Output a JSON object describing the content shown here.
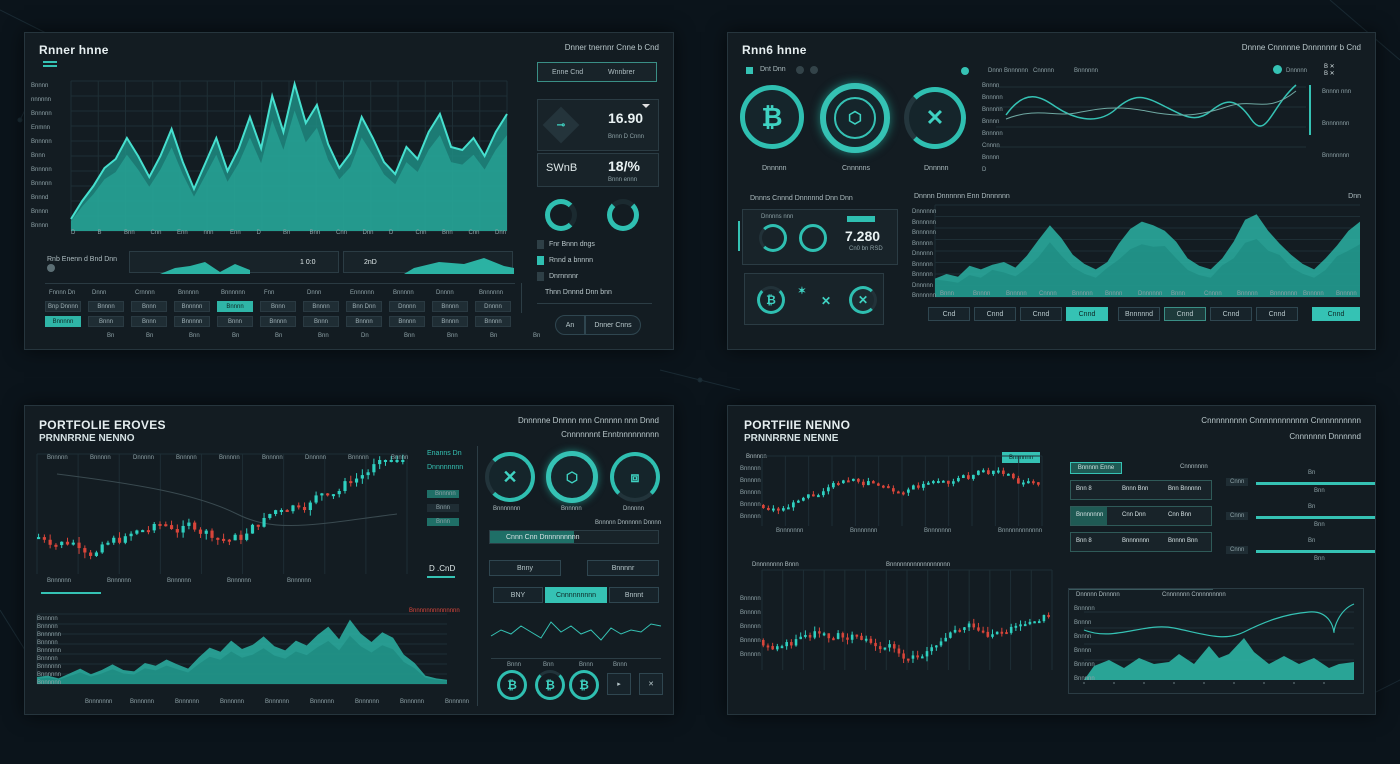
{
  "colors": {
    "accent": "#35c2b4",
    "bg": "#0b141b",
    "panel": "#131c22",
    "bull": "#2fd0c0",
    "bear": "#d8453a"
  },
  "p1": {
    "title": "Rnner hnne",
    "meta": "Dnner tnernnr Cnne b Cnd",
    "tabs": [
      "Enne Cnd",
      "Wnnbrer"
    ],
    "y_ticks": [
      "Bnnnn",
      "nnnnnn",
      "Bnnnnn",
      "Enmnn",
      "Bnnnnn",
      "Bnnn",
      "Bnnnnn",
      "Bnnnnn",
      "Bnnnd",
      "Bnnnn",
      "Bnnnn"
    ],
    "x_ticks": [
      "D",
      "B",
      "Bnn",
      "Cnn",
      "Enn",
      "nnn",
      "Enn",
      "D",
      "Bn",
      "Bnn",
      "Cnn",
      "Dnn",
      "D",
      "Cnn",
      "Bnn",
      "Cnn",
      "Dnn"
    ],
    "card1_value": "16.90",
    "card1_sub": "Bnnn D Cnnn",
    "card2_label": "SWnB",
    "card2_value": "18/%",
    "card2_sub": "Bnnn ennn",
    "legend": [
      "Fnr Bnnn dngs",
      "Rnnd a bnnnn",
      "Dnrnnnnr",
      "Thnn Dnnnd Dnn bnn"
    ],
    "strip_label": "Rnb Enenn d Bnd Dnn",
    "strip_vals": [
      "1 0:0",
      "2nD"
    ],
    "table_header": [
      "Fnnnn Dn",
      "Dnnn",
      "Crnnnn",
      "Bnnnnn",
      "Bnnnnnn",
      "Fnn",
      "Dnnn",
      "Ennnnnn",
      "Bnnnnn",
      "Dnnnn",
      "Bnnnnnn",
      "Bnnn"
    ],
    "table_row2": [
      "Bnp Dnnnn",
      "Bnnnn",
      "Bnnn",
      "Bnnnnn",
      "Bnnnn",
      "Bnnn",
      "Bnnnn",
      "Bnn Dnn",
      "Dnnnn",
      "Bnnnn",
      "Dnnnn"
    ],
    "table_row3": [
      "Bnnnnn",
      "Bnnn",
      "Bnnn",
      "Bnnnnn",
      "Bnnn",
      "Bnnnn",
      "Bnnn",
      "Bnnnn",
      "Bnnnn",
      "Bnnnn",
      "Bnnnn"
    ],
    "table_row4": [
      "Bn",
      "Bn",
      "Bnn",
      "Bn",
      "Bn",
      "Bnn",
      "Dn",
      "Bnn",
      "Bnn",
      "Bn",
      "Bn"
    ],
    "buttons": [
      "An",
      "Dnner Cnns"
    ]
  },
  "p2": {
    "title": "Rnn6 hnne",
    "meta": "Dnnne Cnnnnne Dnnnnnnr b Cnd",
    "tabs": [
      "Dnt Dnn"
    ],
    "coin_labels": [
      "Dnnnnn",
      "Cnnnnns",
      "Dnnnnn"
    ],
    "top_right_legend": [
      "Dnnn Bnnnnnn",
      "Cnnnnn",
      "Bnnnnnn",
      "Dnnnnn"
    ],
    "right_notes": [
      "Bnnnn nnn",
      "Bnnnnnnn",
      "Bnnnnnnn"
    ],
    "top_y": [
      "Bnnnn",
      "Bnnnnn",
      "Bnnnnn",
      "Bnnnn",
      "Bnnnnn",
      "Cnnnn",
      "Bnnnn",
      "D"
    ],
    "mid_label": "Dnnns Cnnnd Dnnnnnd Dnn Dnn",
    "mid_box_label": "Dnnnns nnn",
    "mid_value": "7.280",
    "mid_sub": "Cn0 bn RSD",
    "chart_title": "Dnnnn Dnnnnnn Enn Dnnnnnn",
    "chart_right": "Dnn",
    "y_ticks": [
      "Dnnnnnn",
      "Bnnnnnn",
      "Bnnnnnn",
      "Bnnnnn",
      "Dnnnnn",
      "Bnnnnn",
      "Bnnnnn",
      "Dnnnnn",
      "Bnnnnnn"
    ],
    "x_ticks": [
      "Bnnn",
      "Bnnnn",
      "Bnnnnn",
      "Cnnnn",
      "Bnnnnn",
      "Bnnnn",
      "Dnnnnnn",
      "Bnnn",
      "Cnnnn",
      "Bnnnnn",
      "Bnnnnnnn",
      "Bnnnnn",
      "Bnnnnn"
    ],
    "buttons": [
      "Cnd",
      "Cnnd",
      "Cnnd",
      "Cnnd",
      "Bnnnnnd",
      "Cnnd",
      "Cnnd",
      "Cnnd",
      "Cnnd"
    ]
  },
  "p3": {
    "title": "PORTFOLIE EROVES",
    "subtitle": "PRNNRRNE NENNO",
    "meta": "Dnnnnne Dnnnn nnn Cnnnnn nnn Dnnd",
    "meta2": "Cnnnnnnnt Enntnnnnnnnnn",
    "candle_y": [
      "Bnnnnn",
      "Bnnnnn",
      "Dnnnnn",
      "Bnnnnn"
    ],
    "side_legend": [
      "Enanns Dn",
      "Dnnnnnnnn",
      "Bnnnnn",
      "Bnnn",
      "Bnnn"
    ],
    "side_value": "D .CnD",
    "x_ticks": [
      "Bnnnnnn",
      "Bnnnnnn",
      "Bnnnnnn",
      "Bnnnnnn",
      "Bnnnnnn"
    ],
    "area_label": "Bnnnnnnnnnnnnnn",
    "area_y": [
      "Bnnnnn",
      "Bnnnnn",
      "Bnnnnnn",
      "Bnnnnn",
      "Bnnnnnn",
      "Bnnnnn",
      "Bnnnnnn",
      "Bnnnnnn",
      "Bnnnnnn"
    ],
    "area_x": [
      "Bnnnnnnn",
      "Bnnnnnn",
      "Bnnnnnn",
      "Bnnnnnn",
      "Bnnnnnn",
      "Bnnnnnn",
      "Bnnnnnn",
      "Bnnnnnn",
      "Bnnnnnn"
    ],
    "coin_labels": [
      "Bnnnnnnn",
      "Bnnnnn",
      "Dnnnnn"
    ],
    "coin_note": "Bnnnnn Dnnnnnn Dnnnn",
    "bar_label": "Cnnn Cnn Dnnnnnnnnn",
    "buttons": [
      "Bnny",
      "Bnnnnr",
      "BNY",
      "Cnnnnnnnnn",
      "Bnnnt"
    ],
    "icon_labels": [
      "Bnnn",
      "Bnn",
      "Bnnn",
      "Bnnn"
    ]
  },
  "p4": {
    "title": "PORTFIIE NENNO",
    "subtitle": "PRNNRRNE NENNE",
    "meta": "Cnnnnnnnnn Cnnnnnnnnnnnn Cnnnnnnnnnn",
    "meta2": "Cnnnnnnn Dnnnnnd",
    "candle1_label": "Bnnnnn",
    "candle1_tab": "Bnnnnnn",
    "candle1_y": [
      "Bnnnnn",
      "Bnnnnn",
      "Bnnnnn",
      "Bnnnnn",
      "Bnnnnn"
    ],
    "candle1_x": [
      "Bnnnnnnn",
      "Bnnnnnnn",
      "Bnnnnnnn",
      "Bnnnnnnnnnnnn"
    ],
    "candle2_label": "Dnnnnnnnn Bnnn",
    "candle2_right": "Bnnnnnnnnnnnnnnnnnn",
    "candle2_y": [
      "Bnnnnn",
      "Bnnnnn",
      "Bnnnnn",
      "Bnnnnn",
      "Bnnnnn"
    ],
    "table_tab": "Bnnnnn Enne",
    "table_tab_right": "Cnnnnnnn",
    "rows": [
      [
        "Bnn 8",
        "Bnnn Bnn",
        "Bnn Bnnnnn"
      ],
      [
        "Bnnnnnnn",
        "Cnn Dnn",
        "Cnn Bnn"
      ],
      [
        "Bnn 8",
        "Bnnnnnnn",
        "Bnnnn Bnn"
      ]
    ],
    "right_labels": [
      "Cnnn",
      "Cnnn",
      "Cnnn"
    ],
    "right_vals": [
      "Bnn",
      "Bnn",
      "Bnn"
    ],
    "line_title": "Dnnnnn Dnnnnn",
    "line_title2": "Cnnnnnnn Cnnnnnnnnn",
    "line_y": [
      "Bnnnnn",
      "Bnnnn",
      "Bnnnn",
      "Bnnnn",
      "Bnnnnn",
      "Bnnnnn"
    ]
  }
}
